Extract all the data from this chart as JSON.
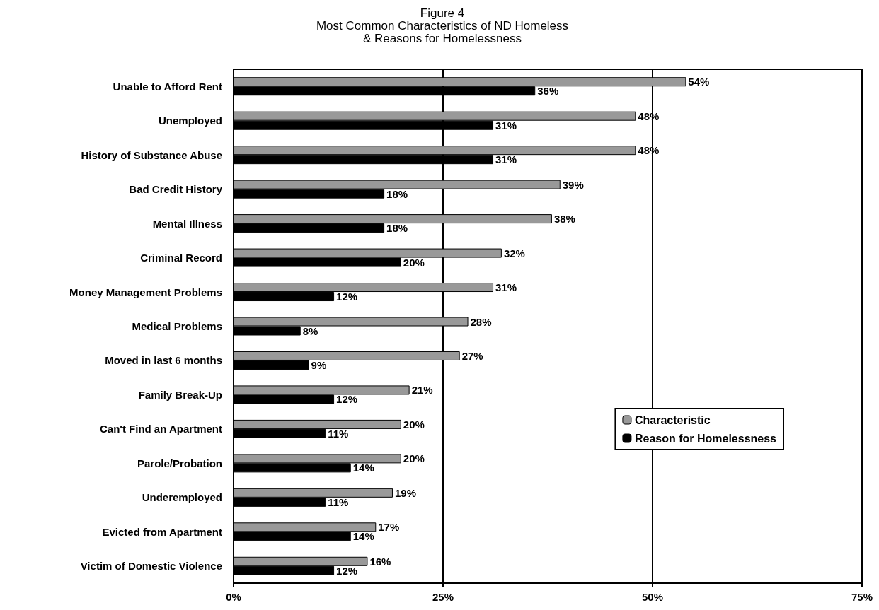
{
  "chart_data": {
    "type": "bar",
    "orientation": "horizontal",
    "title": "Figure 4\nMost Common Characteristics of ND Homeless\n& Reasons for Homelessness",
    "categories": [
      "Unable to Afford Rent",
      "Unemployed",
      "History of Substance Abuse",
      "Bad Credit History",
      "Mental Illness",
      "Criminal Record",
      "Money Management Problems",
      "Medical Problems",
      "Moved in last 6 months",
      "Family Break-Up",
      "Can't Find an Apartment",
      "Parole/Probation",
      "Underemployed",
      "Evicted from Apartment",
      "Victim of Domestic Violence"
    ],
    "series": [
      {
        "name": "Characteristic",
        "color": "#999999",
        "values": [
          54,
          48,
          48,
          39,
          38,
          32,
          31,
          28,
          27,
          21,
          20,
          20,
          19,
          17,
          16
        ],
        "value_labels": [
          "54%",
          "48%",
          "48%",
          "39%",
          "38%",
          "32%",
          "31%",
          "28%",
          "27%",
          "21%",
          "20%",
          "20%",
          "19%",
          "17%",
          "16%"
        ]
      },
      {
        "name": "Reason for Homelessness",
        "color": "#000000",
        "values": [
          36,
          31,
          31,
          18,
          18,
          20,
          12,
          8,
          9,
          12,
          11,
          14,
          11,
          14,
          12
        ],
        "value_labels": [
          "36%",
          "31%",
          "31%",
          "18%",
          "18%",
          "20%",
          "12%",
          "8%",
          "9%",
          "12%",
          "11%",
          "14%",
          "11%",
          "14%",
          "12%"
        ]
      }
    ],
    "xlim": [
      0,
      75
    ],
    "xticks": [
      {
        "value": 0,
        "label": "0%"
      },
      {
        "value": 25,
        "label": "25%"
      },
      {
        "value": 50,
        "label": "50%"
      },
      {
        "value": 75,
        "label": "75%"
      }
    ],
    "grid": "x",
    "legend": "right"
  }
}
